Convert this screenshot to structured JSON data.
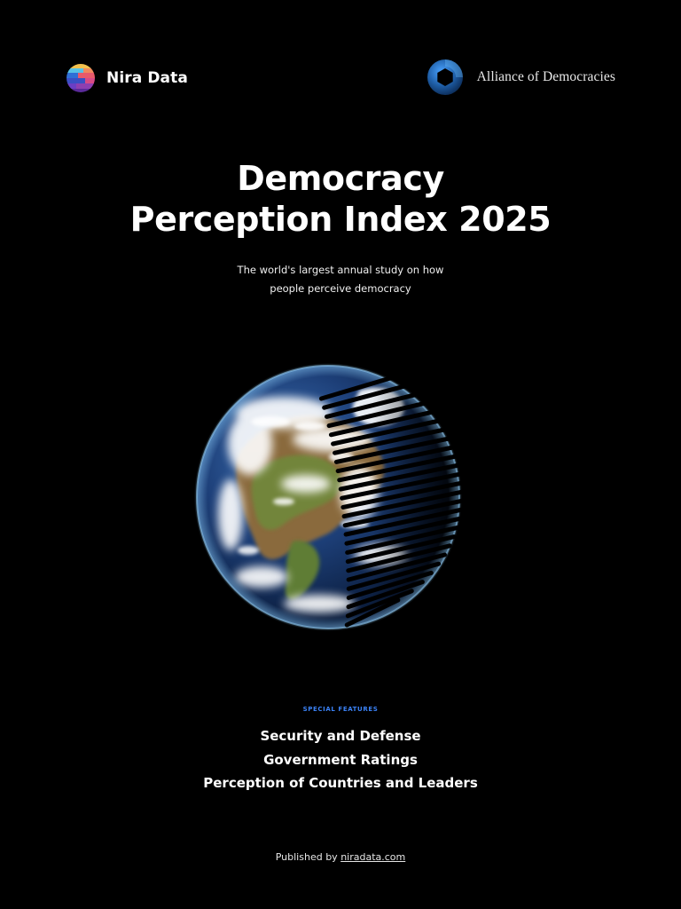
{
  "header": {
    "left_brand": "Nira Data",
    "right_brand": "Alliance of Democracies"
  },
  "title": {
    "line1": "Democracy",
    "line2": "Perception Index 2025"
  },
  "subtitle": {
    "line1": "The world's largest annual study on how",
    "line2": "people perceive democracy"
  },
  "features": {
    "kicker": "SPECIAL FEATURES",
    "items": [
      "Security and Defense",
      "Government Ratings",
      "Perception of Countries and Leaders"
    ]
  },
  "footer": {
    "prefix": "Published by",
    "link": "niradata.com"
  },
  "colors": {
    "background": "#000000",
    "kicker_blue": "#3b82f6",
    "aod_logo_blue": "#1f5fa8"
  }
}
